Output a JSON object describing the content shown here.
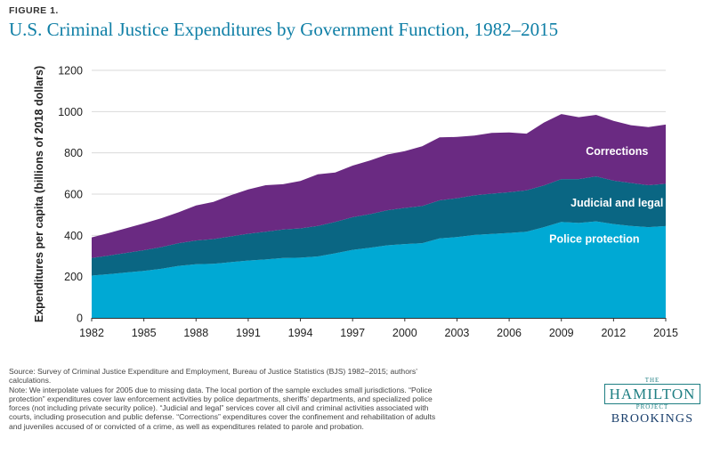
{
  "header": {
    "figure_label": "FIGURE 1.",
    "title": "U.S. Criminal Justice Expenditures by Government Function, 1982–2015"
  },
  "chart_data": {
    "type": "area",
    "stacked": true,
    "title": "U.S. Criminal Justice Expenditures by Government Function, 1982–2015",
    "ylabel": "Expenditures per capita (billions of 2018 dollars)",
    "xlabel": "",
    "ylim": [
      0,
      1200
    ],
    "yticks": [
      0,
      200,
      400,
      600,
      800,
      1000,
      1200
    ],
    "xlim": [
      1982,
      2015
    ],
    "xticks": [
      1982,
      1985,
      1988,
      1991,
      1994,
      1997,
      2000,
      2003,
      2006,
      2009,
      2012,
      2015
    ],
    "grid": "horizontal",
    "x": [
      1982,
      1983,
      1984,
      1985,
      1986,
      1987,
      1988,
      1989,
      1990,
      1991,
      1992,
      1993,
      1994,
      1995,
      1996,
      1997,
      1998,
      1999,
      2000,
      2001,
      2002,
      2003,
      2004,
      2005,
      2006,
      2007,
      2008,
      2009,
      2010,
      2011,
      2012,
      2013,
      2014,
      2015
    ],
    "series": [
      {
        "name": "Police protection",
        "color": "#00a9d4",
        "values": [
          205,
          212,
          220,
          228,
          238,
          252,
          260,
          262,
          270,
          278,
          283,
          290,
          292,
          298,
          313,
          330,
          340,
          352,
          358,
          362,
          385,
          392,
          402,
          407,
          412,
          418,
          440,
          465,
          460,
          468,
          455,
          446,
          440,
          445
        ]
      },
      {
        "name": "Judicial and legal",
        "color": "#0a6683",
        "values": [
          85,
          90,
          95,
          100,
          105,
          110,
          115,
          120,
          125,
          130,
          135,
          138,
          142,
          148,
          152,
          158,
          163,
          170,
          175,
          180,
          185,
          188,
          192,
          195,
          197,
          200,
          202,
          208,
          213,
          218,
          210,
          208,
          203,
          205
        ]
      },
      {
        "name": "Corrections",
        "color": "#6a2a82",
        "values": [
          100,
          110,
          120,
          130,
          140,
          150,
          170,
          180,
          200,
          215,
          225,
          220,
          230,
          250,
          240,
          250,
          260,
          270,
          275,
          290,
          305,
          297,
          290,
          295,
          290,
          275,
          305,
          315,
          300,
          298,
          290,
          280,
          282,
          287
        ]
      }
    ],
    "annotations": [
      "Corrections",
      "Judicial and legal",
      "Police protection"
    ]
  },
  "notes": {
    "source": "Source: Survey of Criminal Justice Expenditure and Employment, Bureau of Justice Statistics (BJS) 1982–2015; authors’ calculations.",
    "note": "Note: We interpolate values for 2005 due to missing data. The local portion of the sample excludes small jurisdictions. “Police protection” expenditures cover law enforcement activities by police departments, sheriffs’ departments, and specialized police forces (not including private security police). “Judicial and legal” services cover all civil and criminal activities associated with courts, including prosecution and public defense. “Corrections” expenditures cover the confinement and rehabilitation of adults and juveniles accused of or convicted of a crime, as well as expenditures related to parole and probation."
  },
  "logo": {
    "the": "THE",
    "hamilton": "HAMILTON",
    "project": "PROJECT",
    "brookings": "BROOKINGS"
  }
}
